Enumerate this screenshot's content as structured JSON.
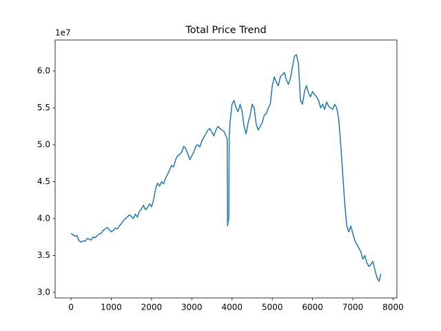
{
  "chart_data": {
    "type": "line",
    "title": "Total Price Trend",
    "y_offset_label": "1e7",
    "x": [
      0,
      50,
      100,
      150,
      200,
      250,
      300,
      350,
      400,
      450,
      500,
      550,
      600,
      650,
      700,
      750,
      800,
      850,
      900,
      950,
      1000,
      1050,
      1100,
      1150,
      1200,
      1250,
      1300,
      1350,
      1400,
      1450,
      1500,
      1550,
      1600,
      1650,
      1700,
      1750,
      1800,
      1850,
      1900,
      1950,
      2000,
      2050,
      2100,
      2150,
      2200,
      2250,
      2300,
      2350,
      2400,
      2450,
      2500,
      2550,
      2600,
      2650,
      2700,
      2750,
      2800,
      2850,
      2900,
      2950,
      3000,
      3050,
      3100,
      3150,
      3200,
      3250,
      3300,
      3350,
      3400,
      3450,
      3500,
      3550,
      3600,
      3650,
      3700,
      3750,
      3800,
      3850,
      3880,
      3890,
      3900,
      3920,
      3930,
      3950,
      4000,
      4050,
      4100,
      4150,
      4200,
      4250,
      4300,
      4350,
      4400,
      4450,
      4500,
      4550,
      4600,
      4650,
      4700,
      4750,
      4800,
      4850,
      4900,
      4950,
      5000,
      5050,
      5100,
      5150,
      5200,
      5250,
      5300,
      5350,
      5400,
      5450,
      5500,
      5550,
      5600,
      5650,
      5700,
      5750,
      5800,
      5850,
      5900,
      5950,
      6000,
      6050,
      6100,
      6150,
      6200,
      6250,
      6300,
      6350,
      6400,
      6450,
      6500,
      6550,
      6600,
      6650,
      6700,
      6750,
      6800,
      6850,
      6900,
      6950,
      7000,
      7050,
      7100,
      7150,
      7200,
      7250,
      7300,
      7350,
      7400,
      7450,
      7500,
      7550,
      7600,
      7650,
      7700
    ],
    "series": [
      {
        "name": "Total Price",
        "color": "#1f77b4",
        "values": [
          3.8,
          3.78,
          3.76,
          3.77,
          3.7,
          3.68,
          3.7,
          3.69,
          3.73,
          3.72,
          3.71,
          3.75,
          3.74,
          3.77,
          3.79,
          3.8,
          3.84,
          3.86,
          3.88,
          3.85,
          3.82,
          3.84,
          3.87,
          3.86,
          3.9,
          3.93,
          3.97,
          4.0,
          4.02,
          4.05,
          4.03,
          4.0,
          4.06,
          4.02,
          4.1,
          4.13,
          4.18,
          4.12,
          4.15,
          4.2,
          4.16,
          4.25,
          4.4,
          4.48,
          4.44,
          4.5,
          4.47,
          4.55,
          4.6,
          4.66,
          4.72,
          4.7,
          4.8,
          4.85,
          4.87,
          4.9,
          4.98,
          4.95,
          4.88,
          4.8,
          4.85,
          4.9,
          4.98,
          5.0,
          4.97,
          5.05,
          5.1,
          5.15,
          5.2,
          5.22,
          5.17,
          5.12,
          5.2,
          5.25,
          5.22,
          5.2,
          5.18,
          5.12,
          5.08,
          3.9,
          3.95,
          4.0,
          5.1,
          5.3,
          5.55,
          5.6,
          5.5,
          5.45,
          5.55,
          5.45,
          5.25,
          5.15,
          5.3,
          5.4,
          5.55,
          5.5,
          5.28,
          5.2,
          5.25,
          5.3,
          5.4,
          5.42,
          5.5,
          5.55,
          5.8,
          5.92,
          5.85,
          5.8,
          5.92,
          5.95,
          5.98,
          5.88,
          5.82,
          5.9,
          6.05,
          6.2,
          6.22,
          6.1,
          5.6,
          5.55,
          5.72,
          5.8,
          5.7,
          5.65,
          5.72,
          5.68,
          5.65,
          5.6,
          5.5,
          5.55,
          5.48,
          5.58,
          5.52,
          5.5,
          5.48,
          5.55,
          5.5,
          5.35,
          5.0,
          4.6,
          4.2,
          3.9,
          3.82,
          3.9,
          3.8,
          3.7,
          3.65,
          3.6,
          3.55,
          3.45,
          3.5,
          3.4,
          3.35,
          3.38,
          3.42,
          3.3,
          3.2,
          3.15,
          3.25
        ]
      }
    ],
    "xlim": [
      -394,
      8095
    ],
    "ylim": [
      2.925,
      6.42
    ],
    "xticks": [
      0,
      1000,
      2000,
      3000,
      4000,
      5000,
      6000,
      7000,
      8000
    ],
    "yticks": [
      {
        "value": 3,
        "label": "3.0"
      },
      {
        "value": 3.5,
        "label": "3.5"
      },
      {
        "value": 4,
        "label": "4.0"
      },
      {
        "value": 4.5,
        "label": "4.5"
      },
      {
        "value": 5,
        "label": "5.0"
      },
      {
        "value": 5.5,
        "label": "5.5"
      },
      {
        "value": 6,
        "label": "6.0"
      }
    ]
  }
}
